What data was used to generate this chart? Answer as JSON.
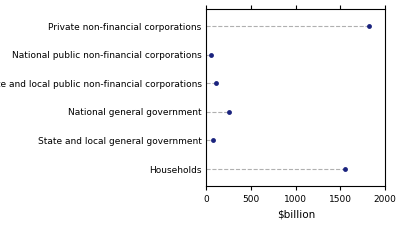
{
  "categories": [
    "Households",
    "State and local general government",
    "National general government",
    "State and local public non-financial corporations",
    "National public non-financial corporations",
    "Private non-financial corporations"
  ],
  "values": [
    1550,
    75,
    255,
    105,
    50,
    1820
  ],
  "dot_color": "#1a237e",
  "line_color": "#b0b0b0",
  "xlabel": "$billion",
  "xlim": [
    0,
    2000
  ],
  "xticks": [
    0,
    500,
    1000,
    1500,
    2000
  ],
  "background_color": "#ffffff",
  "label_fontsize": 6.5,
  "xlabel_fontsize": 7.5
}
